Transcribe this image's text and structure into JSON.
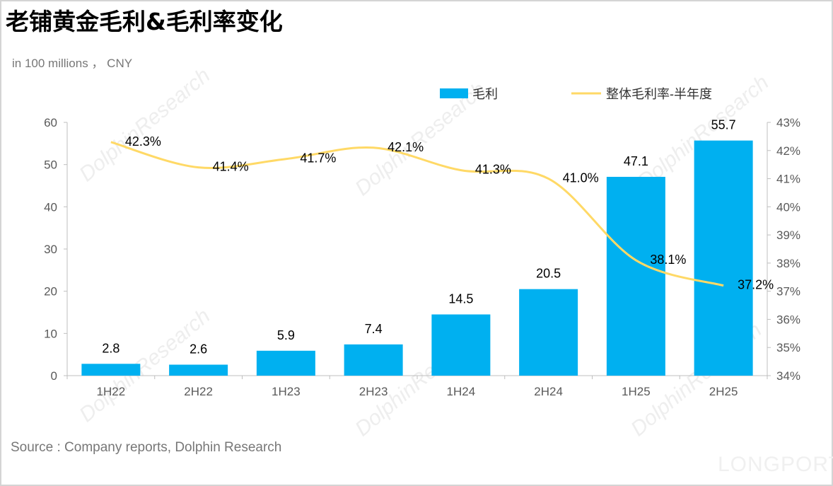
{
  "title": "老铺黄金毛利&毛利率变化",
  "unit_note": "in 100 millions ， CNY",
  "source": "Source : Company reports, Dolphin Research",
  "watermark": "DolphinResearch",
  "logo_text": "LONGPORT",
  "chart_data": {
    "type": "bar+line",
    "categories": [
      "1H22",
      "2H22",
      "1H23",
      "2H23",
      "1H24",
      "2H24",
      "1H25",
      "2H25"
    ],
    "series": [
      {
        "name": "毛利",
        "type": "bar",
        "axis": "left",
        "color": "#00b0f0",
        "values": [
          2.8,
          2.6,
          5.9,
          7.4,
          14.5,
          20.5,
          47.1,
          55.7
        ],
        "labels": [
          "2.8",
          "2.6",
          "5.9",
          "7.4",
          "14.5",
          "20.5",
          "47.1",
          "55.7"
        ]
      },
      {
        "name": "整体毛利率-半年度",
        "type": "line",
        "axis": "right",
        "color": "#ffd966",
        "values": [
          42.3,
          41.4,
          41.7,
          42.1,
          41.3,
          41.0,
          38.1,
          37.2
        ],
        "labels": [
          "42.3%",
          "41.4%",
          "41.7%",
          "42.1%",
          "41.3%",
          "41.0%",
          "38.1%",
          "37.2%"
        ]
      }
    ],
    "left_axis": {
      "ylim": [
        0,
        60
      ],
      "ticks": [
        "0",
        "10",
        "20",
        "30",
        "40",
        "50",
        "60"
      ]
    },
    "right_axis": {
      "ylim": [
        34,
        43
      ],
      "ticks": [
        "34%",
        "35%",
        "36%",
        "37%",
        "38%",
        "39%",
        "40%",
        "41%",
        "42%",
        "43%"
      ]
    },
    "grid": false,
    "legend": "top-right"
  }
}
